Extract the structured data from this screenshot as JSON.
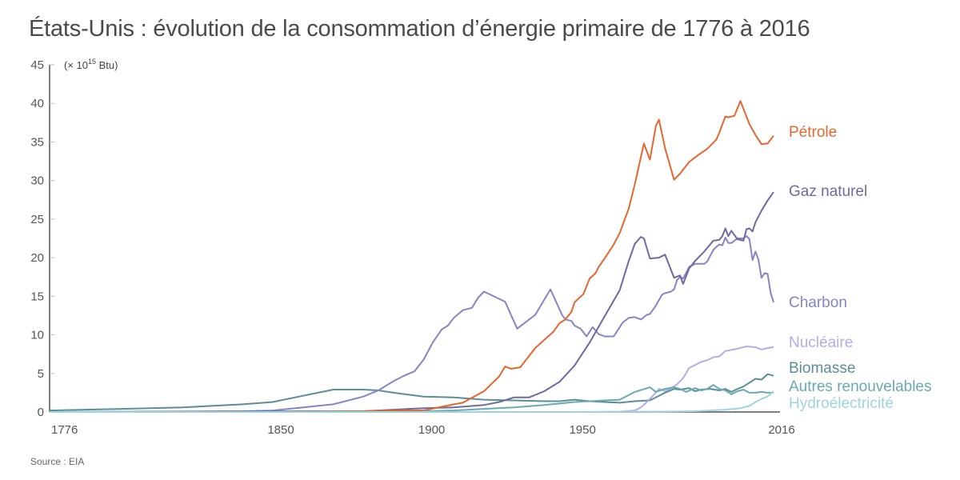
{
  "title": "États-Unis : évolution de la consommation d’énergie primaire de 1776 à 2016",
  "source": "Source : EIA",
  "chart_data": {
    "type": "line",
    "title": "États-Unis : évolution de la consommation d’énergie primaire de 1776 à 2016",
    "ylabel": "(× 10¹⁵ Btu)",
    "unit_prefix": "(× 10",
    "unit_exp": "15",
    "unit_suffix": " Btu)",
    "xlabel": "",
    "xlim": [
      1776,
      2016
    ],
    "ylim": [
      0,
      45
    ],
    "yticks": [
      0,
      5,
      10,
      15,
      20,
      25,
      30,
      35,
      40,
      45
    ],
    "xticks": [
      1776,
      1850,
      1900,
      1950,
      2016
    ],
    "grid": false,
    "legend": "right-inline",
    "series": [
      {
        "name": "Biomasse",
        "color": "#5b8e95",
        "points": [
          [
            1776,
            0.2
          ],
          [
            1800,
            0.4
          ],
          [
            1820,
            0.6
          ],
          [
            1840,
            1.0
          ],
          [
            1850,
            1.3
          ],
          [
            1860,
            2.1
          ],
          [
            1870,
            2.9
          ],
          [
            1880,
            2.9
          ],
          [
            1885,
            2.8
          ],
          [
            1890,
            2.5
          ],
          [
            1900,
            2.0
          ],
          [
            1910,
            1.9
          ],
          [
            1920,
            1.6
          ],
          [
            1930,
            1.5
          ],
          [
            1940,
            1.4
          ],
          [
            1945,
            1.4
          ],
          [
            1950,
            1.6
          ],
          [
            1955,
            1.4
          ],
          [
            1960,
            1.3
          ],
          [
            1965,
            1.2
          ],
          [
            1970,
            1.4
          ],
          [
            1975,
            1.5
          ],
          [
            1980,
            2.5
          ],
          [
            1983,
            3.0
          ],
          [
            1985,
            2.9
          ],
          [
            1988,
            3.1
          ],
          [
            1990,
            2.7
          ],
          [
            1992,
            2.9
          ],
          [
            1995,
            3.0
          ],
          [
            1998,
            2.8
          ],
          [
            2000,
            3.0
          ],
          [
            2002,
            2.6
          ],
          [
            2004,
            3.0
          ],
          [
            2006,
            3.3
          ],
          [
            2008,
            3.8
          ],
          [
            2010,
            4.3
          ],
          [
            2012,
            4.2
          ],
          [
            2014,
            4.9
          ],
          [
            2016,
            4.7
          ]
        ]
      },
      {
        "name": "Charbon",
        "color": "#8585c4",
        "points": [
          [
            1776,
            0
          ],
          [
            1840,
            0.1
          ],
          [
            1850,
            0.2
          ],
          [
            1860,
            0.6
          ],
          [
            1870,
            1.0
          ],
          [
            1880,
            2.0
          ],
          [
            1885,
            2.8
          ],
          [
            1890,
            4.0
          ],
          [
            1893,
            4.6
          ],
          [
            1897,
            5.3
          ],
          [
            1900,
            6.8
          ],
          [
            1903,
            9.0
          ],
          [
            1906,
            10.7
          ],
          [
            1908,
            11.2
          ],
          [
            1910,
            12.2
          ],
          [
            1913,
            13.2
          ],
          [
            1916,
            13.5
          ],
          [
            1918,
            14.8
          ],
          [
            1920,
            15.6
          ],
          [
            1927,
            14.3
          ],
          [
            1931,
            10.8
          ],
          [
            1937,
            12.6
          ],
          [
            1942,
            15.9
          ],
          [
            1946,
            12.5
          ],
          [
            1947,
            12.0
          ],
          [
            1949,
            11.8
          ],
          [
            1950,
            11.2
          ],
          [
            1952,
            10.8
          ],
          [
            1954,
            9.8
          ],
          [
            1956,
            11.0
          ],
          [
            1958,
            10.1
          ],
          [
            1960,
            9.8
          ],
          [
            1963,
            9.8
          ],
          [
            1966,
            11.6
          ],
          [
            1968,
            12.2
          ],
          [
            1970,
            12.3
          ],
          [
            1972,
            12.0
          ],
          [
            1974,
            12.6
          ],
          [
            1975,
            12.7
          ],
          [
            1977,
            13.8
          ],
          [
            1979,
            15.2
          ],
          [
            1980,
            15.4
          ],
          [
            1982,
            15.6
          ],
          [
            1983,
            15.9
          ],
          [
            1984,
            17.1
          ],
          [
            1985,
            17.5
          ],
          [
            1986,
            17.3
          ],
          [
            1988,
            18.8
          ],
          [
            1990,
            19.2
          ],
          [
            1993,
            19.2
          ],
          [
            1994,
            19.5
          ],
          [
            1996,
            21.0
          ],
          [
            1997,
            21.4
          ],
          [
            1998,
            21.7
          ],
          [
            1999,
            21.6
          ],
          [
            2000,
            22.6
          ],
          [
            2001,
            21.9
          ],
          [
            2002,
            21.9
          ],
          [
            2004,
            22.5
          ],
          [
            2006,
            22.5
          ],
          [
            2007,
            22.8
          ],
          [
            2008,
            22.4
          ],
          [
            2009,
            19.7
          ],
          [
            2010,
            20.8
          ],
          [
            2011,
            19.7
          ],
          [
            2012,
            17.4
          ],
          [
            2013,
            18.0
          ],
          [
            2014,
            17.9
          ],
          [
            2015,
            15.5
          ],
          [
            2016,
            14.2
          ]
        ]
      },
      {
        "name": "Gaz naturel",
        "color": "#6e6aa0",
        "points": [
          [
            1776,
            0
          ],
          [
            1880,
            0.1
          ],
          [
            1890,
            0.3
          ],
          [
            1900,
            0.5
          ],
          [
            1910,
            0.6
          ],
          [
            1920,
            0.9
          ],
          [
            1925,
            1.3
          ],
          [
            1930,
            1.9
          ],
          [
            1935,
            1.9
          ],
          [
            1940,
            2.7
          ],
          [
            1945,
            3.9
          ],
          [
            1950,
            6.0
          ],
          [
            1955,
            9.0
          ],
          [
            1960,
            12.4
          ],
          [
            1965,
            15.8
          ],
          [
            1968,
            19.6
          ],
          [
            1970,
            21.8
          ],
          [
            1972,
            22.7
          ],
          [
            1973,
            22.5
          ],
          [
            1975,
            19.9
          ],
          [
            1978,
            20.0
          ],
          [
            1980,
            20.4
          ],
          [
            1983,
            17.4
          ],
          [
            1985,
            17.7
          ],
          [
            1986,
            16.6
          ],
          [
            1988,
            18.6
          ],
          [
            1990,
            19.6
          ],
          [
            1993,
            20.8
          ],
          [
            1996,
            22.2
          ],
          [
            1998,
            22.3
          ],
          [
            1999,
            22.8
          ],
          [
            2000,
            23.8
          ],
          [
            2001,
            22.8
          ],
          [
            2002,
            23.5
          ],
          [
            2004,
            22.4
          ],
          [
            2006,
            22.2
          ],
          [
            2007,
            23.7
          ],
          [
            2008,
            23.8
          ],
          [
            2009,
            23.4
          ],
          [
            2010,
            24.6
          ],
          [
            2012,
            26.1
          ],
          [
            2014,
            27.4
          ],
          [
            2016,
            28.5
          ]
        ]
      },
      {
        "name": "Pétrole",
        "color": "#e4672f",
        "points": [
          [
            1776,
            0
          ],
          [
            1860,
            0
          ],
          [
            1880,
            0.1
          ],
          [
            1890,
            0.2
          ],
          [
            1900,
            0.2
          ],
          [
            1905,
            0.6
          ],
          [
            1910,
            1.0
          ],
          [
            1913,
            1.2
          ],
          [
            1920,
            2.7
          ],
          [
            1925,
            4.6
          ],
          [
            1927,
            5.9
          ],
          [
            1929,
            5.6
          ],
          [
            1932,
            5.8
          ],
          [
            1937,
            8.3
          ],
          [
            1941,
            9.7
          ],
          [
            1943,
            10.4
          ],
          [
            1945,
            11.5
          ],
          [
            1947,
            12.0
          ],
          [
            1949,
            13.0
          ],
          [
            1950,
            14.2
          ],
          [
            1953,
            15.3
          ],
          [
            1955,
            17.3
          ],
          [
            1957,
            18.0
          ],
          [
            1958,
            18.8
          ],
          [
            1960,
            19.9
          ],
          [
            1963,
            21.7
          ],
          [
            1965,
            23.2
          ],
          [
            1968,
            26.4
          ],
          [
            1970,
            29.5
          ],
          [
            1973,
            34.8
          ],
          [
            1975,
            32.7
          ],
          [
            1977,
            37.1
          ],
          [
            1978,
            37.9
          ],
          [
            1980,
            34.2
          ],
          [
            1983,
            30.1
          ],
          [
            1985,
            30.9
          ],
          [
            1988,
            32.4
          ],
          [
            1991,
            33.3
          ],
          [
            1994,
            34.1
          ],
          [
            1996,
            34.9
          ],
          [
            1997,
            35.3
          ],
          [
            1998,
            36.2
          ],
          [
            2000,
            38.3
          ],
          [
            2001,
            38.2
          ],
          [
            2003,
            38.4
          ],
          [
            2005,
            40.3
          ],
          [
            2008,
            37.3
          ],
          [
            2010,
            35.9
          ],
          [
            2012,
            34.7
          ],
          [
            2014,
            34.8
          ],
          [
            2016,
            35.8
          ]
        ]
      },
      {
        "name": "Nucléaire",
        "color": "#b0aee5",
        "points": [
          [
            1957,
            0
          ],
          [
            1965,
            0.04
          ],
          [
            1970,
            0.2
          ],
          [
            1972,
            0.6
          ],
          [
            1974,
            1.3
          ],
          [
            1976,
            2.1
          ],
          [
            1978,
            3.0
          ],
          [
            1980,
            2.7
          ],
          [
            1982,
            3.1
          ],
          [
            1984,
            3.6
          ],
          [
            1986,
            4.4
          ],
          [
            1988,
            5.7
          ],
          [
            1990,
            6.1
          ],
          [
            1992,
            6.5
          ],
          [
            1994,
            6.7
          ],
          [
            1996,
            7.1
          ],
          [
            1998,
            7.2
          ],
          [
            2000,
            7.9
          ],
          [
            2004,
            8.2
          ],
          [
            2007,
            8.5
          ],
          [
            2010,
            8.4
          ],
          [
            2012,
            8.1
          ],
          [
            2014,
            8.3
          ],
          [
            2016,
            8.4
          ]
        ]
      },
      {
        "name": "Autres renouvelables",
        "color": "#6aa9b0",
        "points": [
          [
            1900,
            0.1
          ],
          [
            1910,
            0.2
          ],
          [
            1920,
            0.4
          ],
          [
            1930,
            0.6
          ],
          [
            1940,
            0.9
          ],
          [
            1950,
            1.3
          ],
          [
            1955,
            1.4
          ],
          [
            1960,
            1.5
          ],
          [
            1965,
            1.6
          ],
          [
            1970,
            2.6
          ],
          [
            1975,
            3.2
          ],
          [
            1977,
            2.6
          ],
          [
            1980,
            3.0
          ],
          [
            1983,
            3.2
          ],
          [
            1985,
            3.0
          ],
          [
            1987,
            2.6
          ],
          [
            1990,
            3.1
          ],
          [
            1992,
            2.8
          ],
          [
            1994,
            3.0
          ],
          [
            1996,
            3.5
          ],
          [
            1998,
            3.0
          ],
          [
            2000,
            2.8
          ],
          [
            2002,
            2.3
          ],
          [
            2004,
            2.7
          ],
          [
            2006,
            2.9
          ],
          [
            2008,
            2.5
          ],
          [
            2010,
            2.5
          ],
          [
            2012,
            2.6
          ],
          [
            2014,
            2.5
          ],
          [
            2016,
            2.5
          ]
        ]
      },
      {
        "name": "Hydroélectricité",
        "color": "#9fd4dc",
        "points": [
          [
            1776,
            0
          ],
          [
            1900,
            0
          ],
          [
            1950,
            0
          ],
          [
            1980,
            0.05
          ],
          [
            1990,
            0.1
          ],
          [
            2000,
            0.3
          ],
          [
            2005,
            0.5
          ],
          [
            2008,
            0.8
          ],
          [
            2010,
            1.3
          ],
          [
            2012,
            1.7
          ],
          [
            2014,
            2.0
          ],
          [
            2016,
            2.7
          ]
        ]
      }
    ]
  }
}
